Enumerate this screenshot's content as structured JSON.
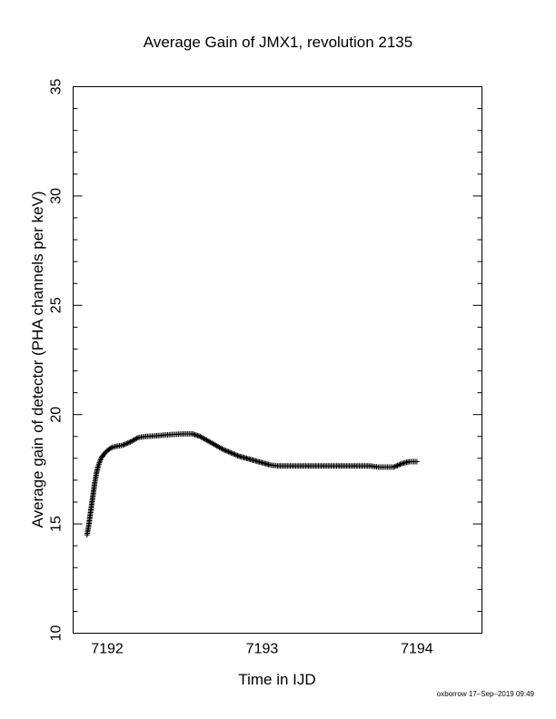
{
  "chart_data": {
    "type": "scatter",
    "title": "Average Gain of JMX1, revolution 2135",
    "xlabel": "Time in IJD",
    "ylabel": "Average gain of detector (PHA channels per keV)",
    "xlim": [
      7191.78,
      7194.42
    ],
    "ylim": [
      10,
      35
    ],
    "xticks": [
      7192,
      7193,
      7194
    ],
    "yticks": [
      10,
      15,
      20,
      25,
      30,
      35
    ],
    "xtick_labels": [
      "7192",
      "7193",
      "7194"
    ],
    "ytick_labels": [
      "10",
      "15",
      "20",
      "25",
      "30",
      "35"
    ],
    "grid": false,
    "marker": "plus",
    "series": [
      {
        "x": [
          7191.87,
          7191.88,
          7191.89,
          7191.9,
          7191.91,
          7191.92,
          7191.93,
          7191.94,
          7191.95,
          7191.96,
          7191.98,
          7192.0,
          7192.03,
          7192.06,
          7192.1,
          7192.15,
          7192.2,
          7192.25,
          7192.3,
          7192.35,
          7192.4,
          7192.45,
          7192.5,
          7192.55,
          7192.6,
          7192.65,
          7192.7,
          7192.75,
          7192.8,
          7192.85,
          7192.9,
          7192.95,
          7193.0,
          7193.05,
          7193.1,
          7193.2,
          7193.3,
          7193.4,
          7193.5,
          7193.6,
          7193.7,
          7193.75,
          7193.8,
          7193.85,
          7193.9,
          7193.95,
          7194.0
        ],
        "y": [
          14.5,
          14.9,
          15.4,
          15.9,
          16.4,
          16.9,
          17.3,
          17.6,
          17.8,
          18.0,
          18.2,
          18.35,
          18.5,
          18.55,
          18.6,
          18.75,
          18.95,
          19.0,
          19.02,
          19.05,
          19.08,
          19.1,
          19.12,
          19.12,
          19.0,
          18.8,
          18.6,
          18.4,
          18.25,
          18.1,
          18.0,
          17.9,
          17.8,
          17.7,
          17.65,
          17.65,
          17.65,
          17.65,
          17.65,
          17.65,
          17.65,
          17.6,
          17.6,
          17.6,
          17.75,
          17.85,
          17.85
        ]
      }
    ]
  },
  "footer": "oxborrow 17–Sep–2019 09:49"
}
